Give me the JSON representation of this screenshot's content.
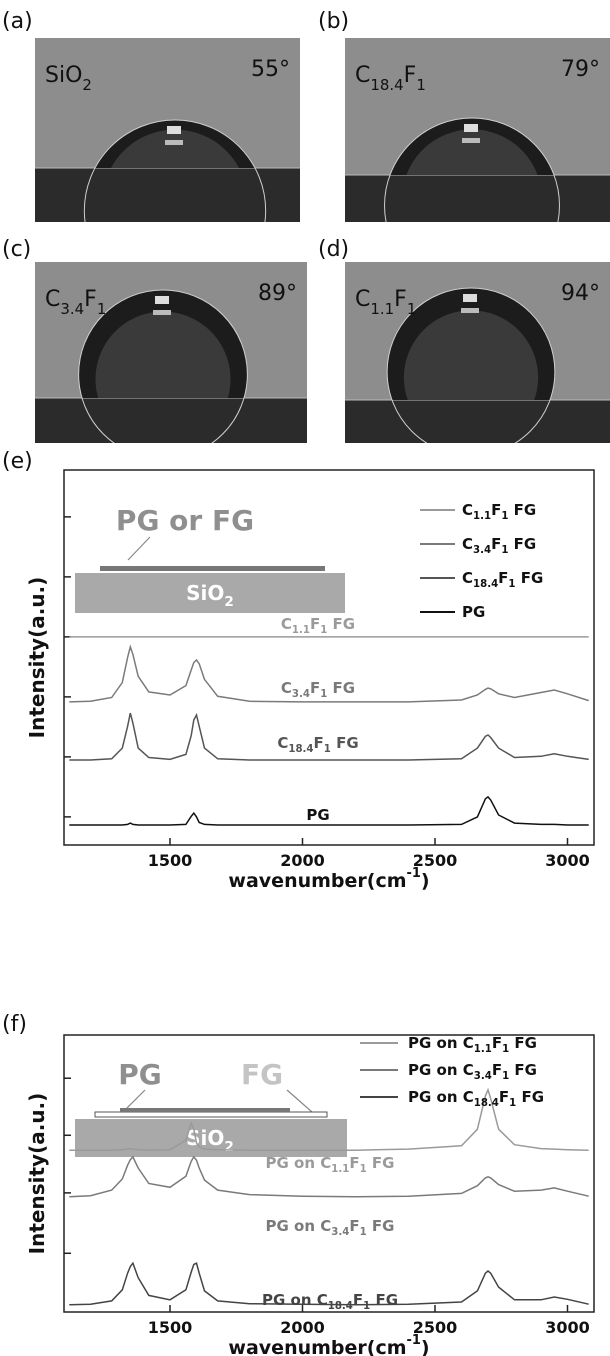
{
  "photos": [
    {
      "label": "(a)",
      "sample": "SiO<sub>2</sub>",
      "angle": "55°"
    },
    {
      "label": "(b)",
      "sample": "C<sub>18.4</sub>F<sub>1</sub>",
      "angle": "79°"
    },
    {
      "label": "(c)",
      "sample": "C<sub>3.4</sub>F<sub>1</sub>",
      "angle": "89°"
    },
    {
      "label": "(d)",
      "sample": "C<sub>1.1</sub>F<sub>1</sub>",
      "angle": "94°"
    }
  ],
  "chart_data": [
    {
      "type": "line",
      "panel": "(e)",
      "xlabel": "wavenumber(cm<sup>-1</sup>)",
      "ylabel": "Intensity(a.u.)",
      "inset": {
        "film": "PG or FG",
        "substrate": "SiO<sub>2</sub>"
      },
      "x": [
        1120,
        1200,
        1280,
        1320,
        1340,
        1350,
        1360,
        1380,
        1420,
        1500,
        1560,
        1580,
        1590,
        1600,
        1610,
        1630,
        1680,
        1800,
        2000,
        2200,
        2400,
        2600,
        2660,
        2690,
        2700,
        2710,
        2740,
        2800,
        2900,
        2950,
        3000,
        3080
      ],
      "xlim": [
        1100,
        3100
      ],
      "xticks": [
        1500,
        2000,
        2500,
        3000
      ],
      "ylim": [
        0,
        6
      ],
      "yticks": [
        0.45,
        1.41,
        2.37,
        3.33,
        4.29,
        5.25
      ],
      "legend": "upper right",
      "series": [
        {
          "name": "C<sub>1.1</sub>F<sub>1</sub>  FG",
          "color": "#9a9a9a",
          "values": [
            3.33,
            3.33,
            3.33,
            3.33,
            3.33,
            3.33,
            3.33,
            3.33,
            3.33,
            3.33,
            3.33,
            3.33,
            3.33,
            3.33,
            3.33,
            3.33,
            3.33,
            3.33,
            3.33,
            3.33,
            3.33,
            3.33,
            3.33,
            3.33,
            3.33,
            3.33,
            3.33,
            3.33,
            3.33,
            3.33,
            3.33,
            3.33
          ]
        },
        {
          "name": "C<sub>3.4</sub>F<sub>1</sub>  FG",
          "color": "#7a7a7a",
          "values": [
            2.29,
            2.3,
            2.36,
            2.6,
            3.0,
            3.17,
            3.05,
            2.7,
            2.45,
            2.4,
            2.55,
            2.8,
            2.92,
            2.96,
            2.9,
            2.65,
            2.38,
            2.3,
            2.29,
            2.29,
            2.29,
            2.32,
            2.4,
            2.49,
            2.51,
            2.5,
            2.42,
            2.36,
            2.44,
            2.48,
            2.42,
            2.31
          ]
        },
        {
          "name": "C<sub>18.4</sub>F<sub>1</sub> FG",
          "color": "#555555",
          "values": [
            1.36,
            1.36,
            1.38,
            1.55,
            1.9,
            2.11,
            1.95,
            1.55,
            1.4,
            1.37,
            1.45,
            1.75,
            2.0,
            2.08,
            1.9,
            1.55,
            1.38,
            1.36,
            1.36,
            1.36,
            1.36,
            1.38,
            1.55,
            1.74,
            1.76,
            1.72,
            1.55,
            1.4,
            1.42,
            1.46,
            1.42,
            1.37
          ]
        },
        {
          "name": "PG",
          "color": "#111111",
          "values": [
            0.32,
            0.32,
            0.32,
            0.32,
            0.33,
            0.35,
            0.33,
            0.32,
            0.32,
            0.32,
            0.33,
            0.46,
            0.51,
            0.45,
            0.36,
            0.33,
            0.32,
            0.32,
            0.32,
            0.32,
            0.32,
            0.33,
            0.45,
            0.74,
            0.77,
            0.72,
            0.48,
            0.35,
            0.33,
            0.33,
            0.32,
            0.32
          ]
        }
      ]
    },
    {
      "type": "line",
      "panel": "(f)",
      "xlabel": "wavenumber(cm<sup>-1</sup>)",
      "ylabel": "Intensity(a.u.)",
      "inset": {
        "film": "PG",
        "underlayer": "FG",
        "substrate": "SiO<sub>2</sub>"
      },
      "x": [
        1120,
        1200,
        1280,
        1320,
        1340,
        1350,
        1360,
        1380,
        1420,
        1500,
        1560,
        1580,
        1590,
        1600,
        1610,
        1630,
        1680,
        1800,
        2000,
        2200,
        2400,
        2600,
        2660,
        2690,
        2700,
        2710,
        2740,
        2800,
        2900,
        2950,
        3000,
        3080
      ],
      "xlim": [
        1100,
        3100
      ],
      "xticks": [
        1500,
        2000,
        2500,
        3000
      ],
      "ylim": [
        0,
        5
      ],
      "yticks": [
        1.06,
        2.15,
        3.19,
        4.22
      ],
      "legend": "upper right",
      "series": [
        {
          "name": "PG on C<sub>1.1</sub>F<sub>1</sub> FG",
          "color": "#9a9a9a",
          "values": [
            2.92,
            2.92,
            2.92,
            2.93,
            2.94,
            2.95,
            2.94,
            2.93,
            2.92,
            2.93,
            3.1,
            3.41,
            3.3,
            3.05,
            2.98,
            2.94,
            2.93,
            2.92,
            2.92,
            2.92,
            2.94,
            3.0,
            3.3,
            3.9,
            4.01,
            3.85,
            3.3,
            3.02,
            2.95,
            2.94,
            2.93,
            2.92
          ]
        },
        {
          "name": "PG on C<sub>3.4</sub>F<sub>1</sub> FG",
          "color": "#7a7a7a",
          "values": [
            2.08,
            2.1,
            2.2,
            2.4,
            2.65,
            2.75,
            2.8,
            2.6,
            2.32,
            2.25,
            2.45,
            2.72,
            2.8,
            2.74,
            2.6,
            2.38,
            2.2,
            2.12,
            2.09,
            2.08,
            2.09,
            2.14,
            2.28,
            2.42,
            2.44,
            2.42,
            2.3,
            2.18,
            2.2,
            2.24,
            2.18,
            2.09
          ]
        },
        {
          "name": "PG on C<sub>18.4</sub>F<sub>1</sub> FG",
          "color": "#444444",
          "values": [
            0.13,
            0.14,
            0.2,
            0.4,
            0.7,
            0.82,
            0.88,
            0.62,
            0.3,
            0.22,
            0.4,
            0.72,
            0.86,
            0.88,
            0.7,
            0.38,
            0.2,
            0.15,
            0.14,
            0.13,
            0.14,
            0.18,
            0.38,
            0.7,
            0.74,
            0.7,
            0.45,
            0.22,
            0.22,
            0.27,
            0.23,
            0.14
          ]
        }
      ]
    }
  ]
}
